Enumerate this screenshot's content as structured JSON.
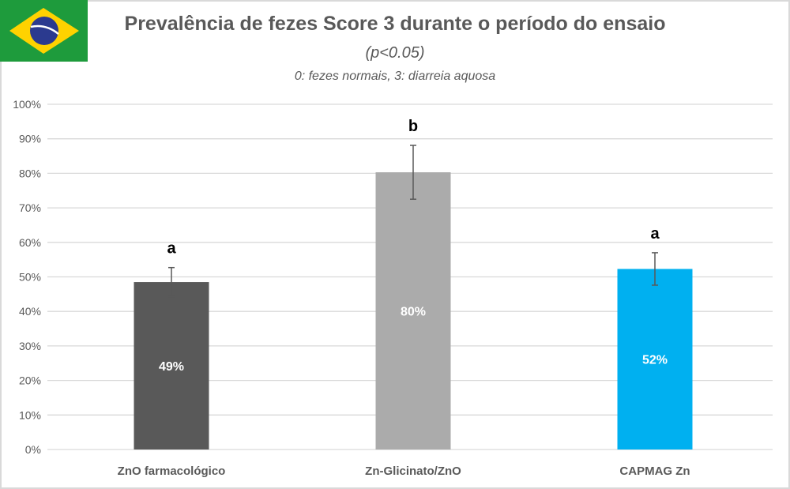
{
  "title": "Prevalência de fezes Score 3 durante o período do ensaio",
  "subtitle": "(p<0.05)",
  "note": "0: fezes normais, 3: diarreia aquosa",
  "chart_data": {
    "type": "bar",
    "title": "Prevalência de fezes Score 3 durante o período do ensaio",
    "xlabel": "",
    "ylabel": "",
    "ylim": [
      0,
      100
    ],
    "yticks": [
      0,
      10,
      20,
      30,
      40,
      50,
      60,
      70,
      80,
      90,
      100
    ],
    "ytick_labels": [
      "0%",
      "10%",
      "20%",
      "30%",
      "40%",
      "50%",
      "60%",
      "70%",
      "80%",
      "90%",
      "100%"
    ],
    "grid": true,
    "categories": [
      "ZnO farmacológico",
      "Zn-Glicinato/ZnO",
      "CAPMAG Zn"
    ],
    "values": [
      48.5,
      80.3,
      52.3
    ],
    "data_labels": [
      "49%",
      "80%",
      "52%"
    ],
    "error": [
      4.2,
      7.8,
      4.7
    ],
    "significance_letters": [
      "a",
      "b",
      "a"
    ],
    "colors": [
      "#595959",
      "#ababab",
      "#00b0f0"
    ]
  }
}
